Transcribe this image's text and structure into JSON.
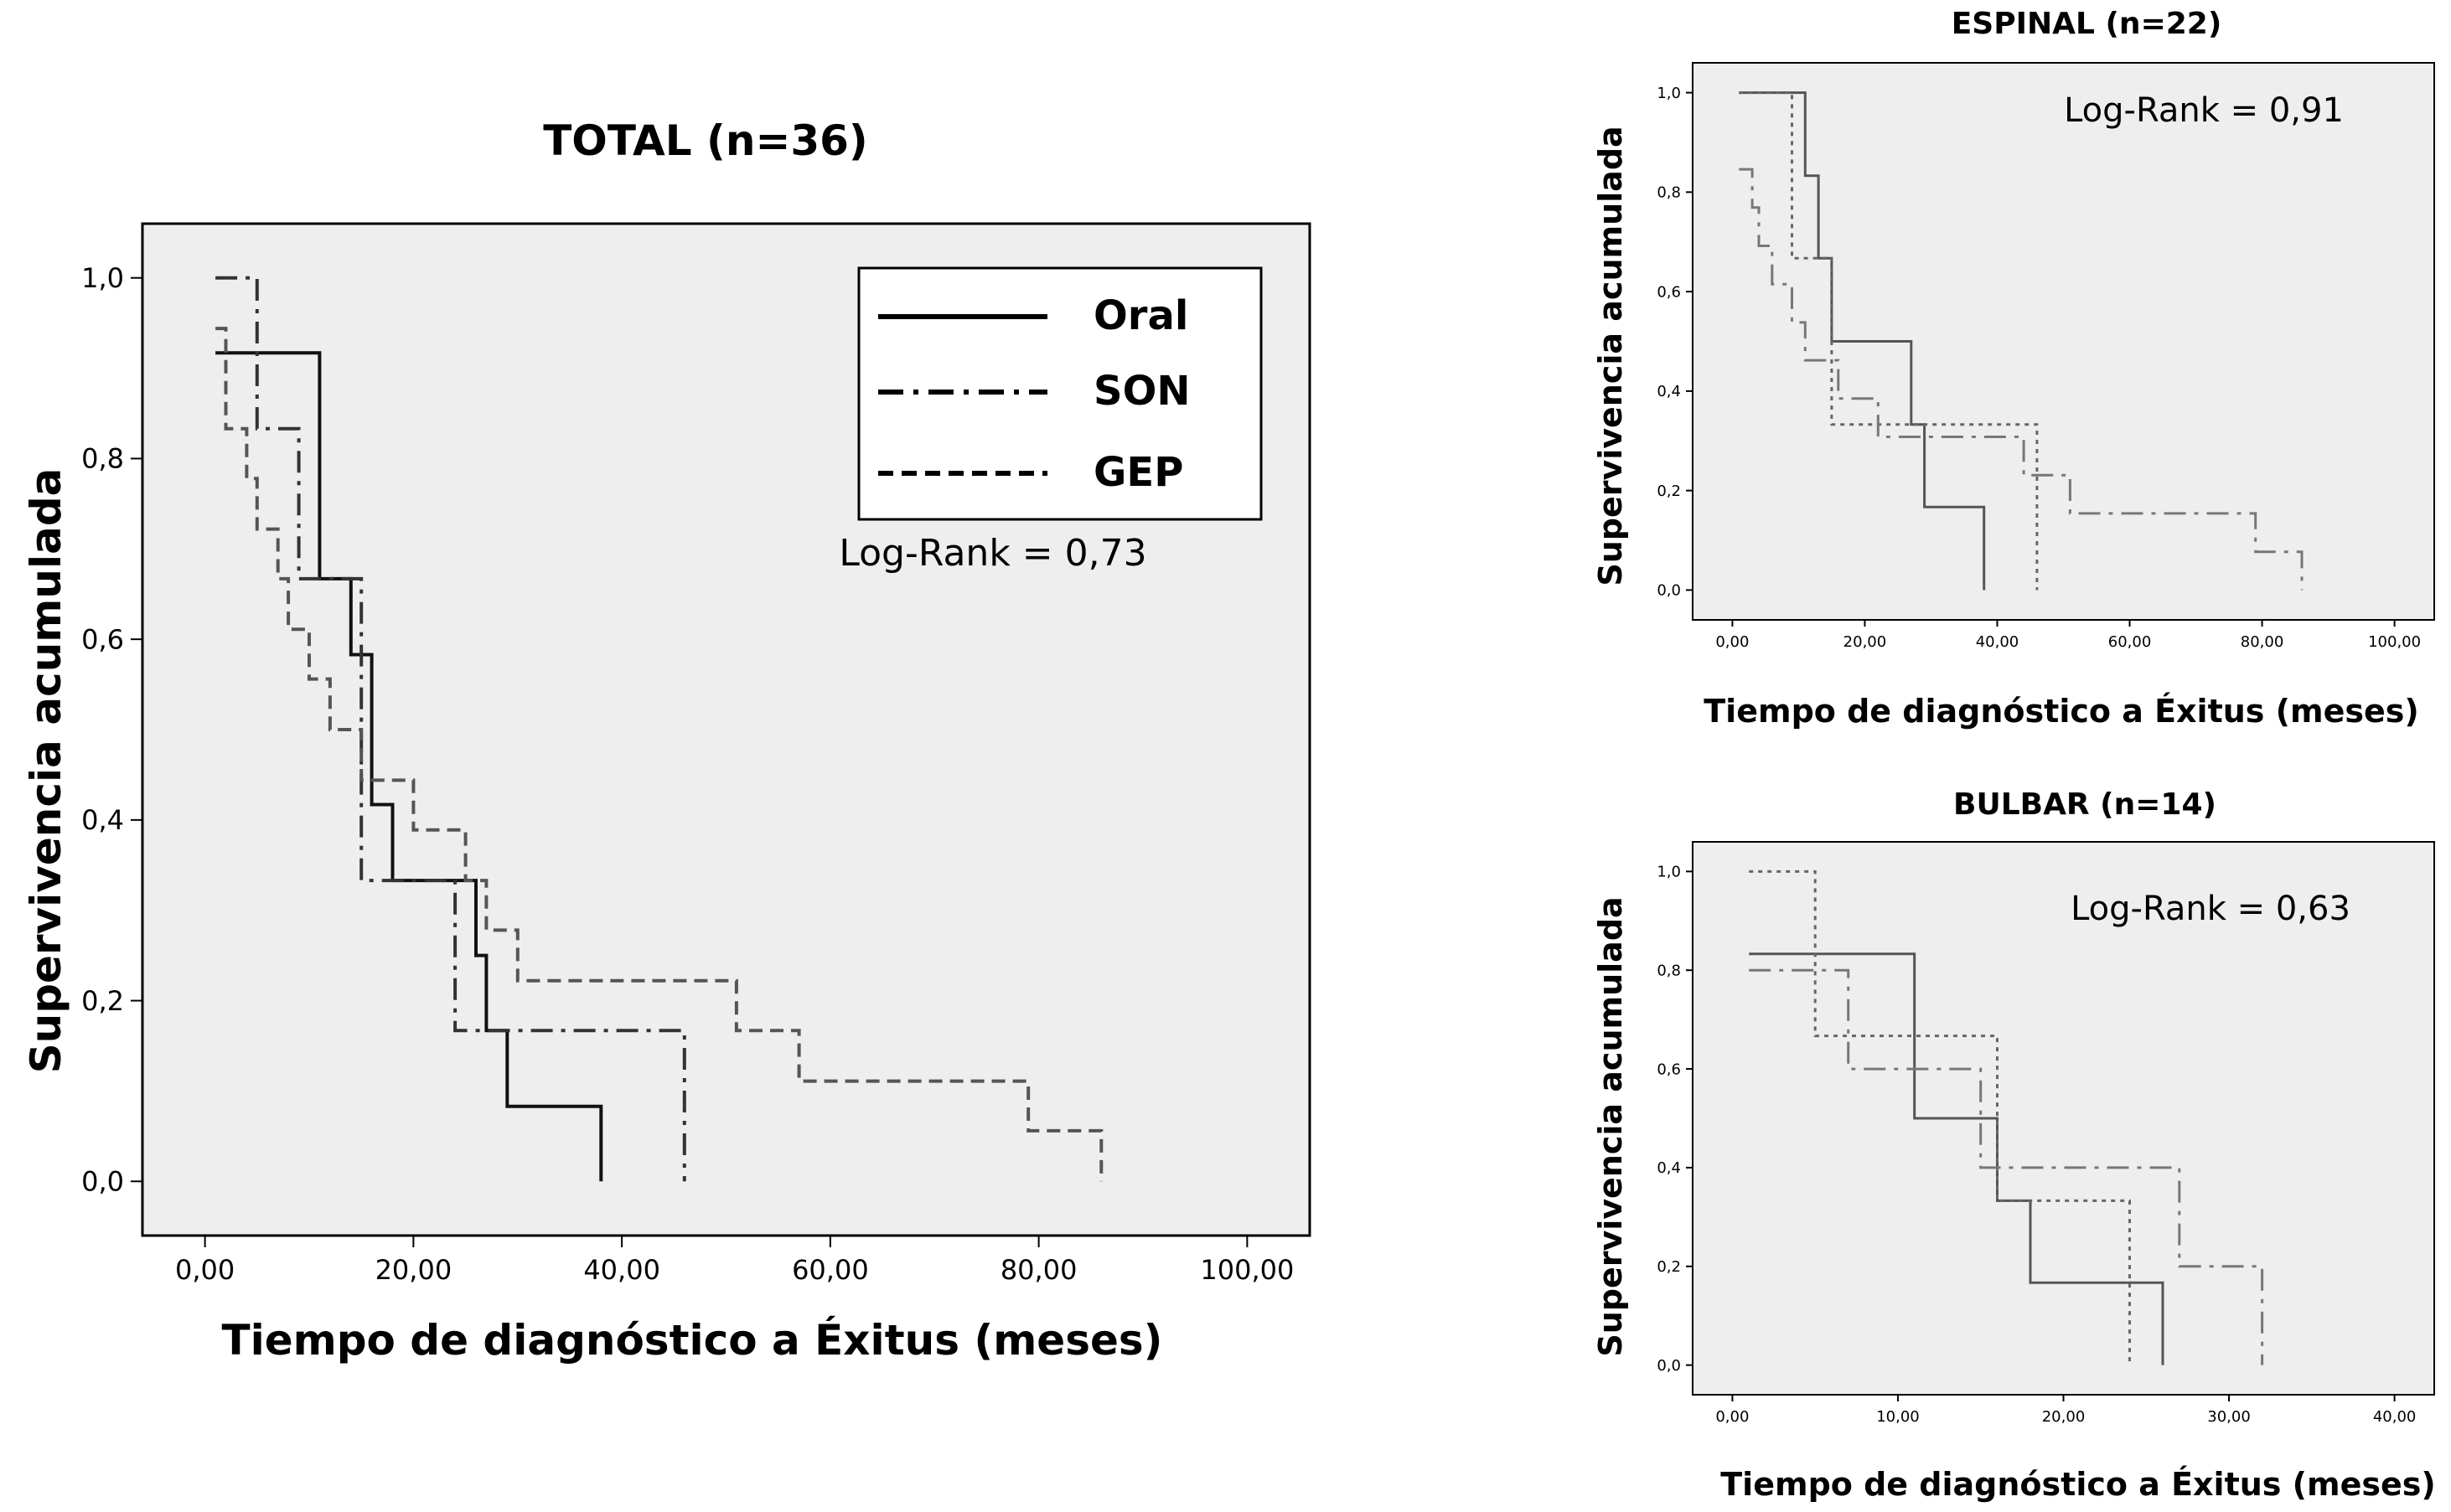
{
  "chart_data": [
    {
      "type": "line",
      "title": "TOTAL (n=36)",
      "xlabel": "Tiempo de diagnóstico a Éxitus (meses)",
      "ylabel": "Supervivencia acumulada",
      "xlim": [
        -6,
        106
      ],
      "ylim": [
        -0.06,
        1.06
      ],
      "x_ticks": [
        0,
        20,
        40,
        60,
        80,
        100
      ],
      "x_tick_labels": [
        "0,00",
        "20,00",
        "40,00",
        "60,00",
        "80,00",
        "100,00"
      ],
      "y_ticks": [
        0,
        0.2,
        0.4,
        0.6,
        0.8,
        1.0
      ],
      "y_tick_labels": [
        "0,0",
        "0,2",
        "0,4",
        "0,6",
        "0,8",
        "1,0"
      ],
      "annotation": "Log-Rank = 0,73",
      "legend": "top-right",
      "grid": false,
      "series": [
        {
          "name": "Oral",
          "style": "solid",
          "color": "#111111",
          "points": [
            [
              1,
              0.917
            ],
            [
              11,
              0.917
            ],
            [
              11,
              0.667
            ],
            [
              14,
              0.667
            ],
            [
              14,
              0.583
            ],
            [
              16,
              0.583
            ],
            [
              16,
              0.417
            ],
            [
              18,
              0.417
            ],
            [
              18,
              0.333
            ],
            [
              26,
              0.333
            ],
            [
              26,
              0.25
            ],
            [
              27,
              0.25
            ],
            [
              27,
              0.167
            ],
            [
              29,
              0.167
            ],
            [
              29,
              0.083
            ],
            [
              38,
              0.083
            ],
            [
              38,
              0.0
            ]
          ]
        },
        {
          "name": "SON",
          "style": "dashdot",
          "color": "#333333",
          "points": [
            [
              1,
              1.0
            ],
            [
              5,
              1.0
            ],
            [
              5,
              0.833
            ],
            [
              9,
              0.833
            ],
            [
              9,
              0.667
            ],
            [
              15,
              0.667
            ],
            [
              15,
              0.333
            ],
            [
              24,
              0.333
            ],
            [
              24,
              0.167
            ],
            [
              46,
              0.167
            ],
            [
              46,
              0.0
            ]
          ]
        },
        {
          "name": "GEP",
          "style": "dashed",
          "color": "#555555",
          "points": [
            [
              1,
              0.944
            ],
            [
              2,
              0.944
            ],
            [
              2,
              0.833
            ],
            [
              4,
              0.833
            ],
            [
              4,
              0.778
            ],
            [
              5,
              0.778
            ],
            [
              5,
              0.722
            ],
            [
              7,
              0.722
            ],
            [
              7,
              0.667
            ],
            [
              8,
              0.667
            ],
            [
              8,
              0.611
            ],
            [
              10,
              0.611
            ],
            [
              10,
              0.556
            ],
            [
              12,
              0.556
            ],
            [
              12,
              0.5
            ],
            [
              15,
              0.5
            ],
            [
              15,
              0.444
            ],
            [
              20,
              0.444
            ],
            [
              20,
              0.389
            ],
            [
              25,
              0.389
            ],
            [
              25,
              0.333
            ],
            [
              27,
              0.333
            ],
            [
              27,
              0.278
            ],
            [
              30,
              0.278
            ],
            [
              30,
              0.222
            ],
            [
              51,
              0.222
            ],
            [
              51,
              0.167
            ],
            [
              57,
              0.167
            ],
            [
              57,
              0.111
            ],
            [
              79,
              0.111
            ],
            [
              79,
              0.056
            ],
            [
              86,
              0.056
            ],
            [
              86,
              0.0
            ]
          ]
        }
      ]
    },
    {
      "type": "line",
      "title": "ESPINAL (n=22)",
      "xlabel": "Tiempo de diagnóstico a Éxitus (meses)",
      "ylabel": "Supervivencia  acumulada",
      "xlim": [
        -6,
        106
      ],
      "ylim": [
        -0.06,
        1.06
      ],
      "x_ticks": [
        0,
        20,
        40,
        60,
        80,
        100
      ],
      "x_tick_labels": [
        "0,00",
        "20,00",
        "40,00",
        "60,00",
        "80,00",
        "100,00"
      ],
      "y_ticks": [
        0,
        0.2,
        0.4,
        0.6,
        0.8,
        1.0
      ],
      "y_tick_labels": [
        "0,0",
        "0,2",
        "0,4",
        "0,6",
        "0,8",
        "1,0"
      ],
      "annotation": "Log-Rank = 0,91",
      "grid": false,
      "series": [
        {
          "style": "solid",
          "color": "#555555",
          "points": [
            [
              1,
              1.0
            ],
            [
              11,
              1.0
            ],
            [
              11,
              0.833
            ],
            [
              13,
              0.833
            ],
            [
              13,
              0.667
            ],
            [
              15,
              0.667
            ],
            [
              15,
              0.5
            ],
            [
              27,
              0.5
            ],
            [
              27,
              0.333
            ],
            [
              29,
              0.333
            ],
            [
              29,
              0.167
            ],
            [
              38,
              0.167
            ],
            [
              38,
              0.0
            ]
          ]
        },
        {
          "style": "dotted",
          "color": "#666666",
          "points": [
            [
              1,
              1.0
            ],
            [
              9,
              1.0
            ],
            [
              9,
              0.667
            ],
            [
              15,
              0.667
            ],
            [
              15,
              0.333
            ],
            [
              46,
              0.333
            ],
            [
              46,
              0.0
            ]
          ]
        },
        {
          "style": "dashdot",
          "color": "#777777",
          "points": [
            [
              1,
              0.846
            ],
            [
              3,
              0.846
            ],
            [
              3,
              0.769
            ],
            [
              4,
              0.769
            ],
            [
              4,
              0.692
            ],
            [
              6,
              0.692
            ],
            [
              6,
              0.615
            ],
            [
              9,
              0.615
            ],
            [
              9,
              0.538
            ],
            [
              11,
              0.538
            ],
            [
              11,
              0.462
            ],
            [
              16,
              0.462
            ],
            [
              16,
              0.385
            ],
            [
              22,
              0.385
            ],
            [
              22,
              0.308
            ],
            [
              44,
              0.308
            ],
            [
              44,
              0.231
            ],
            [
              51,
              0.231
            ],
            [
              51,
              0.154
            ],
            [
              79,
              0.154
            ],
            [
              79,
              0.077
            ],
            [
              86,
              0.077
            ],
            [
              86,
              0.0
            ]
          ]
        }
      ]
    },
    {
      "type": "line",
      "title": "BULBAR (n=14)",
      "xlabel": "Tiempo de diagnóstico a Éxitus (meses)",
      "ylabel": "Supervivencia  acumulada",
      "xlim": [
        -2.4,
        42.4
      ],
      "ylim": [
        -0.06,
        1.06
      ],
      "x_ticks": [
        0,
        10,
        20,
        30,
        40
      ],
      "x_tick_labels": [
        "0,00",
        "10,00",
        "20,00",
        "30,00",
        "40,00"
      ],
      "y_ticks": [
        0,
        0.2,
        0.4,
        0.6,
        0.8,
        1.0
      ],
      "y_tick_labels": [
        "0,0",
        "0,2",
        "0,4",
        "0,6",
        "0,8",
        "1,0"
      ],
      "annotation": "Log-Rank = 0,63",
      "grid": false,
      "series": [
        {
          "style": "solid",
          "color": "#555555",
          "points": [
            [
              1,
              0.833
            ],
            [
              11,
              0.833
            ],
            [
              11,
              0.5
            ],
            [
              16,
              0.5
            ],
            [
              16,
              0.333
            ],
            [
              18,
              0.333
            ],
            [
              18,
              0.167
            ],
            [
              26,
              0.167
            ],
            [
              26,
              0.0
            ]
          ]
        },
        {
          "style": "dotted",
          "color": "#666666",
          "points": [
            [
              1,
              1.0
            ],
            [
              5,
              1.0
            ],
            [
              5,
              0.667
            ],
            [
              16,
              0.667
            ],
            [
              16,
              0.333
            ],
            [
              24,
              0.333
            ],
            [
              24,
              0.0
            ]
          ]
        },
        {
          "style": "dashdot",
          "color": "#777777",
          "points": [
            [
              1,
              0.8
            ],
            [
              7,
              0.8
            ],
            [
              7,
              0.6
            ],
            [
              15,
              0.6
            ],
            [
              15,
              0.4
            ],
            [
              27,
              0.4
            ],
            [
              27,
              0.2
            ],
            [
              32,
              0.2
            ],
            [
              32,
              0.0
            ]
          ]
        }
      ]
    }
  ]
}
